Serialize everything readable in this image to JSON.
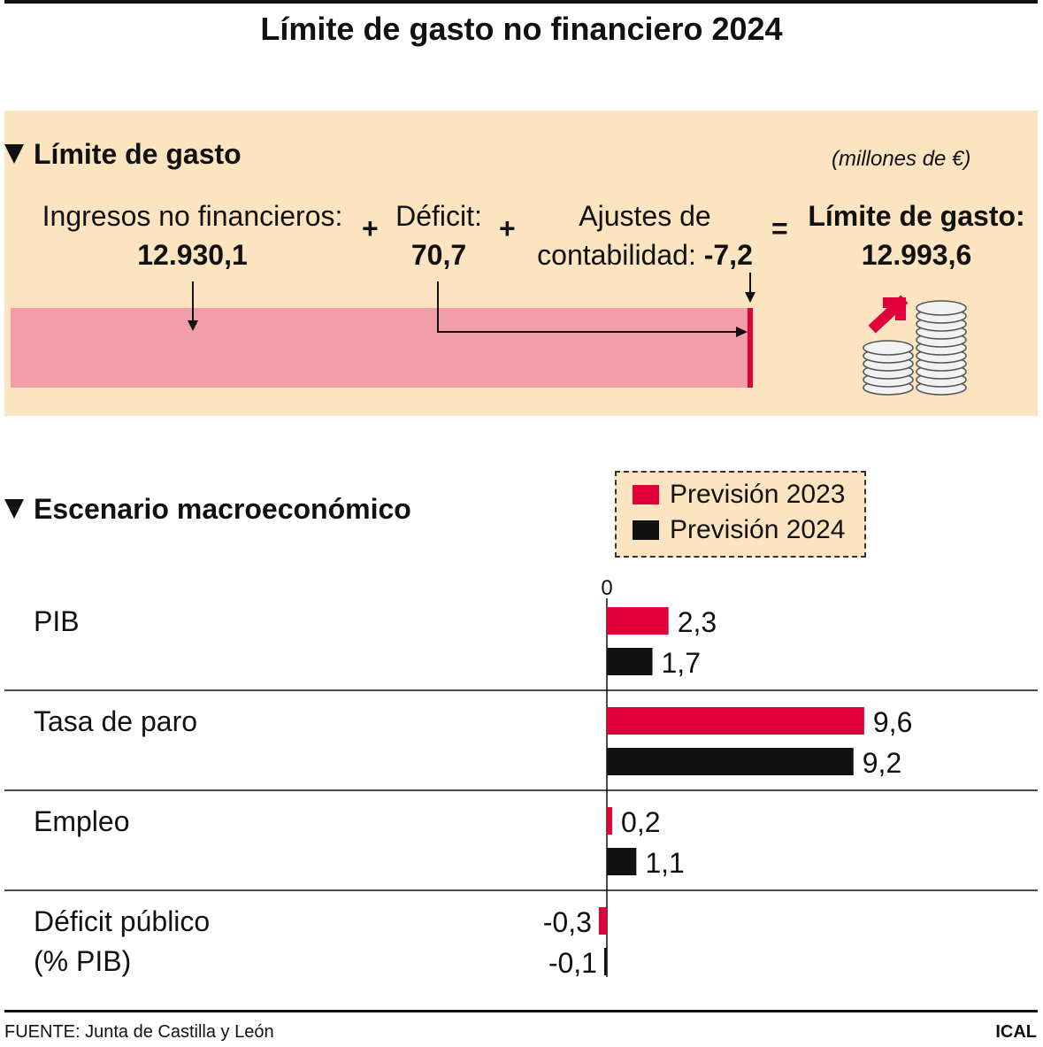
{
  "title": "Límite de gasto no financiero 2024",
  "limit_section": {
    "heading": "Límite de gasto",
    "units": "(millones de €)",
    "income_label": "Ingresos no financieros:",
    "income_value": "12.930,1",
    "plus_1": "+",
    "deficit_label": "Déficit:",
    "deficit_value": "70,7",
    "plus_2": "+",
    "adjust_label_1": "Ajustes de",
    "adjust_label_2": "contabilidad:",
    "adjust_value": "-7,2",
    "equals": "=",
    "result_label": "Límite de gasto:",
    "result_value": "12.993,6",
    "icon": "coins-growth-icon"
  },
  "macro_section": {
    "heading": "Escenario macroeconómico",
    "legend": [
      "Previsión 2023",
      "Previsión 2024"
    ],
    "rows": [
      {
        "label": "PIB",
        "label2": ""
      },
      {
        "label": "Tasa de paro",
        "label2": ""
      },
      {
        "label": "Empleo",
        "label2": ""
      },
      {
        "label": "Déficit público",
        "label2": "(% PIB)"
      }
    ]
  },
  "chart_data": [
    {
      "type": "bar",
      "orientation": "horizontal-stacked",
      "segments": [
        {
          "name": "Ingresos no financieros",
          "value": 12930.1
        },
        {
          "name": "Déficit",
          "value": 70.7
        },
        {
          "name": "Ajustes de contabilidad",
          "value": -7.2
        }
      ],
      "total": 12993.6
    },
    {
      "type": "bar",
      "orientation": "horizontal",
      "zero_label": "0",
      "categories": [
        "PIB",
        "Tasa de paro",
        "Empleo",
        "Déficit público (% PIB)"
      ],
      "series": [
        {
          "name": "Previsión 2023",
          "values": [
            2.3,
            9.6,
            0.2,
            -0.3
          ],
          "labels": [
            "2,3",
            "9,6",
            "0,2",
            "-0,3"
          ]
        },
        {
          "name": "Previsión 2024",
          "values": [
            1.7,
            9.2,
            1.1,
            -0.1
          ],
          "labels": [
            "1,7",
            "9,2",
            "1,1",
            "-0,1"
          ]
        }
      ]
    }
  ],
  "colors": {
    "panel": "#fbe4bf",
    "bar_pink": "#f29ea9",
    "series_2023": "#e1003a",
    "series_2024": "#111111"
  },
  "footer": {
    "source": "FUENTE: Junta de Castilla y León",
    "credit": "ICAL"
  }
}
